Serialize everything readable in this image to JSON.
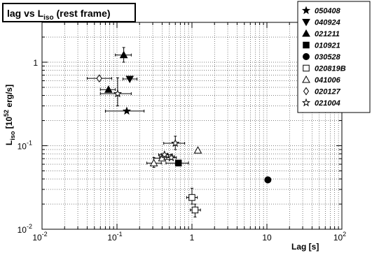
{
  "chart_data": {
    "type": "scatter",
    "title": {
      "main": "lag vs L",
      "sub": "iso",
      "tail": " (rest frame)"
    },
    "xlabel": "Lag [s]",
    "ylabel": {
      "main": "L",
      "sub": "iso",
      "tail": " [10",
      "sup": "52",
      "tail2": " erg/s]"
    },
    "xscale": "log",
    "yscale": "log",
    "xlim": [
      0.01,
      100
    ],
    "ylim": [
      0.01,
      3
    ],
    "grid": "dashed",
    "legend_position": "top-right",
    "x_ticks": [
      {
        "value": 0.01,
        "base": "10",
        "exp": "-2"
      },
      {
        "value": 0.1,
        "base": "10",
        "exp": "-1"
      },
      {
        "value": 1,
        "base": "1",
        "exp": ""
      },
      {
        "value": 10,
        "base": "10",
        "exp": ""
      },
      {
        "value": 100,
        "base": "10",
        "exp": "2"
      }
    ],
    "y_ticks": [
      {
        "value": 0.01,
        "base": "10",
        "exp": "-2"
      },
      {
        "value": 0.1,
        "base": "10",
        "exp": "-1"
      },
      {
        "value": 1,
        "base": "1",
        "exp": ""
      }
    ],
    "series": [
      {
        "name": "050408",
        "marker": "star",
        "points": [
          {
            "x": 0.135,
            "y": 0.26,
            "xerr": [
              0.07,
              0.23
            ],
            "yerr": null
          }
        ]
      },
      {
        "name": "040924",
        "marker": "triangle-down",
        "points": [
          {
            "x": 0.148,
            "y": 0.63,
            "xerr": [
              0.12,
              0.185
            ],
            "yerr": null
          }
        ]
      },
      {
        "name": "021211",
        "marker": "triangle-up",
        "points": [
          {
            "x": 0.123,
            "y": 1.22,
            "xerr": [
              0.095,
              0.155
            ],
            "yerr": [
              1.0,
              1.5
            ]
          },
          {
            "x": 0.077,
            "y": 0.47,
            "xerr": [
              0.06,
              0.095
            ],
            "yerr": null
          }
        ]
      },
      {
        "name": "010921",
        "marker": "square-filled",
        "points": [
          {
            "x": 0.66,
            "y": 0.062,
            "xerr": [
              0.45,
              0.9
            ],
            "yerr": null
          }
        ]
      },
      {
        "name": "030528",
        "marker": "circle-filled",
        "points": [
          {
            "x": 10.3,
            "y": 0.039,
            "xerr": null,
            "yerr": null
          }
        ]
      },
      {
        "name": "020819B",
        "marker": "square-open",
        "points": [
          {
            "x": 1.0,
            "y": 0.024,
            "xerr": [
              0.85,
              1.18
            ],
            "yerr": [
              0.02,
              0.031
            ]
          },
          {
            "x": 1.1,
            "y": 0.017,
            "xerr": [
              0.95,
              1.3
            ],
            "yerr": [
              0.014,
              0.02
            ]
          }
        ]
      },
      {
        "name": "041006",
        "marker": "triangle-up-open",
        "points": [
          {
            "x": 1.2,
            "y": 0.088,
            "xerr": null,
            "yerr": null
          },
          {
            "x": 0.31,
            "y": 0.062,
            "xerr": [
              0.25,
              0.39
            ],
            "yerr": [
              0.055,
              0.072
            ]
          },
          {
            "x": 0.4,
            "y": 0.071,
            "xerr": [
              0.31,
              0.5
            ],
            "yerr": null
          },
          {
            "x": 0.47,
            "y": 0.074,
            "xerr": [
              0.37,
              0.58
            ],
            "yerr": null
          }
        ]
      },
      {
        "name": "020127",
        "marker": "diamond-open",
        "points": [
          {
            "x": 0.058,
            "y": 0.64,
            "xerr": [
              0.04,
              0.085
            ],
            "yerr": null
          }
        ]
      },
      {
        "name": "021004",
        "marker": "star-open",
        "points": [
          {
            "x": 0.102,
            "y": 0.42,
            "xerr": [
              0.06,
              0.155
            ],
            "yerr": [
              0.3,
              0.65
            ]
          },
          {
            "x": 0.6,
            "y": 0.107,
            "xerr": [
              0.42,
              0.8
            ],
            "yerr": [
              0.09,
              0.13
            ]
          },
          {
            "x": 0.43,
            "y": 0.078,
            "xerr": [
              0.36,
              0.55
            ],
            "yerr": null
          },
          {
            "x": 0.53,
            "y": 0.072,
            "xerr": [
              0.46,
              0.62
            ],
            "yerr": null
          }
        ]
      }
    ]
  }
}
